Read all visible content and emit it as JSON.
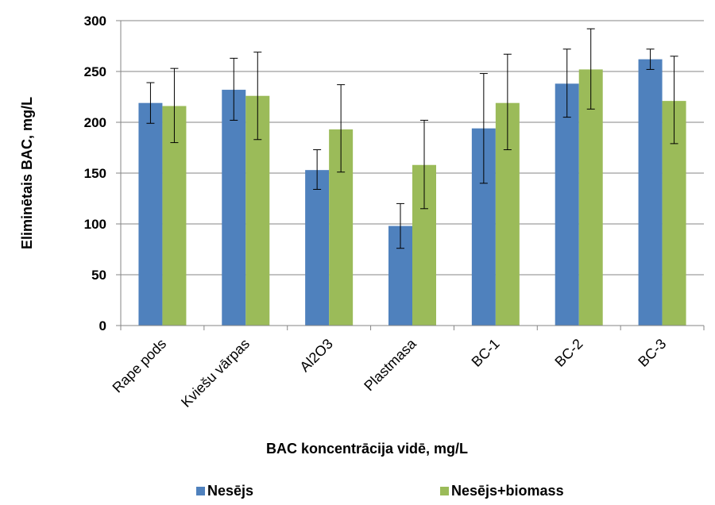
{
  "chart_data": {
    "type": "bar",
    "xlabel": "BAC koncentrācija vidē, mg/L",
    "ylabel": "Eliminētais BAC, mg/L",
    "ylim": [
      0,
      300
    ],
    "yticks": [
      0,
      50,
      100,
      150,
      200,
      250,
      300
    ],
    "grid": true,
    "legend_position": "bottom",
    "categories": [
      "Rape pods",
      "Kviešu vārpas",
      "Al2O3",
      "Plastmasa",
      "BC-1",
      "BC-2",
      "BC-3"
    ],
    "series": [
      {
        "name": "Nesējs",
        "color": "#4F81BD",
        "values": [
          219,
          232,
          153,
          98,
          194,
          238,
          262
        ],
        "error_low": [
          199,
          202,
          134,
          76,
          140,
          205,
          252
        ],
        "error_high": [
          239,
          263,
          173,
          120,
          248,
          272,
          272
        ]
      },
      {
        "name": "Nesējs+biomass",
        "color": "#9BBB59",
        "values": [
          216,
          226,
          193,
          158,
          219,
          252,
          221
        ],
        "error_low": [
          180,
          183,
          151,
          115,
          173,
          213,
          179
        ],
        "error_high": [
          253,
          269,
          237,
          202,
          267,
          292,
          265
        ]
      }
    ]
  }
}
